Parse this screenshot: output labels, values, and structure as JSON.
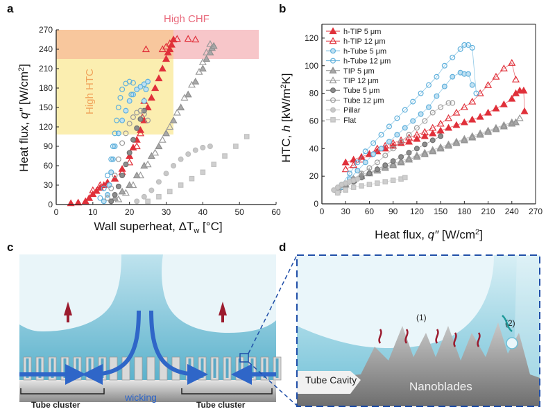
{
  "panels": {
    "a": "a",
    "b": "b",
    "c": "c",
    "d": "d"
  },
  "panel_a": {
    "annotations": {
      "high_chf": "High CHF",
      "high_htc": "High HTC"
    },
    "colors": {
      "chf_band": "#f7c6c9",
      "htc_band": "#fbeeb0",
      "overlap": "#f8c79d"
    }
  },
  "panel_c": {
    "wicking": "wicking",
    "tube_cluster_left": "Tube cluster",
    "tube_cluster_right": "Tube cluster"
  },
  "panel_d": {
    "label_1": "(1)",
    "label_2": "(2)",
    "tube_cavity": "Tube Cavity",
    "nanoblades": "Nanoblades"
  },
  "chart_data": [
    {
      "panel": "a",
      "type": "scatter",
      "xlabel": "Wall superheat, ΔT",
      "xlabel_sub": "w",
      "xlabel_unit": " [°C]",
      "ylabel": "Heat flux, ",
      "ylabel_var": "q″",
      "ylabel_unit": " [W/cm",
      "ylabel_sup": "2",
      "ylabel_end": "]",
      "xlim": [
        0,
        60
      ],
      "ylim": [
        0,
        270
      ],
      "xticks": [
        0,
        10,
        20,
        30,
        40,
        50,
        60
      ],
      "yticks": [
        0,
        30,
        60,
        90,
        120,
        150,
        180,
        210,
        240,
        270
      ],
      "series": [
        {
          "name": "h-TIP 5 μm",
          "marker": "tri",
          "fill": "#e0303a",
          "stroke": "#e0303a",
          "x": [
            4,
            6,
            8,
            9,
            10,
            11,
            12,
            13,
            14,
            16,
            18,
            20,
            21,
            22,
            23,
            24,
            25,
            26,
            27,
            28,
            29,
            30,
            30.5,
            31,
            31.5,
            32
          ],
          "y": [
            2,
            3,
            5,
            10,
            16,
            21,
            26,
            30,
            34,
            40,
            55,
            75,
            88,
            100,
            115,
            130,
            150,
            165,
            180,
            195,
            210,
            225,
            235,
            240,
            247,
            255
          ]
        },
        {
          "name": "h-TIP 12 μm",
          "marker": "tri",
          "fill": "none",
          "stroke": "#e0303a",
          "x": [
            10,
            12,
            14,
            16,
            18,
            20,
            22,
            23,
            23.5,
            24,
            24.5,
            29,
            30,
            31,
            33,
            36,
            38
          ],
          "y": [
            22,
            30,
            34,
            40,
            50,
            65,
            90,
            110,
            135,
            160,
            240,
            240,
            244,
            249,
            256,
            256,
            255
          ]
        },
        {
          "name": "h-Tube 5 μm",
          "marker": "circ",
          "fill": "#bfe0f2",
          "stroke": "#5fb0dc",
          "x": [
            13,
            14,
            14.5,
            15,
            15.5,
            16,
            17,
            18,
            19,
            20,
            21,
            22,
            23,
            24,
            25,
            24.5,
            24
          ],
          "y": [
            5,
            15,
            30,
            50,
            70,
            90,
            110,
            130,
            145,
            160,
            170,
            178,
            182,
            186,
            190,
            178,
            160
          ]
        },
        {
          "name": "h-Tube 12 μm",
          "marker": "circ",
          "fill": "none",
          "stroke": "#5fb0dc",
          "x": [
            12,
            13,
            14,
            15,
            15.5,
            16,
            16.5,
            17,
            17.5,
            18,
            19,
            20,
            21,
            20.5
          ],
          "y": [
            10,
            25,
            45,
            70,
            90,
            110,
            130,
            150,
            165,
            178,
            187,
            190,
            188,
            170
          ]
        },
        {
          "name": "TIP 5 μm",
          "marker": "tri",
          "fill": "#a8a8a8",
          "stroke": "#8e8e8e",
          "x": [
            16,
            18,
            20,
            22,
            24,
            26,
            28,
            30,
            32,
            34,
            36,
            38,
            40,
            41,
            42,
            42.5,
            43
          ],
          "y": [
            10,
            20,
            30,
            45,
            60,
            75,
            90,
            110,
            130,
            150,
            170,
            190,
            210,
            225,
            235,
            242,
            245
          ]
        },
        {
          "name": "TIP 12 μm",
          "marker": "tri",
          "fill": "none",
          "stroke": "#9a9a9a",
          "x": [
            17,
            19,
            21,
            23,
            25,
            27,
            29,
            31,
            33,
            35,
            37,
            39,
            40,
            41,
            42
          ],
          "y": [
            8,
            18,
            30,
            45,
            62,
            80,
            100,
            120,
            142,
            165,
            185,
            205,
            220,
            235,
            248
          ]
        },
        {
          "name": "Tube 5 μm",
          "marker": "circ",
          "fill": "#8c8c8c",
          "stroke": "#707070",
          "x": [
            15,
            16,
            17,
            18,
            19,
            20,
            21,
            22,
            23,
            24
          ],
          "y": [
            5,
            15,
            28,
            45,
            62,
            80,
            100,
            118,
            132,
            145
          ]
        },
        {
          "name": "Tube 12 μm",
          "marker": "circ",
          "fill": "none",
          "stroke": "#9a9a9a",
          "x": [
            14,
            15,
            16,
            17,
            18,
            19,
            20,
            21,
            22,
            23,
            24,
            25
          ],
          "y": [
            10,
            25,
            45,
            70,
            95,
            110,
            125,
            135,
            142,
            145,
            140,
            130
          ]
        },
        {
          "name": "Pillar",
          "marker": "circ",
          "fill": "#c8c8c8",
          "stroke": "#bdbdbd",
          "x": [
            22,
            24,
            26,
            28,
            30,
            32,
            34,
            36,
            38,
            40,
            42
          ],
          "y": [
            5,
            12,
            22,
            35,
            48,
            60,
            70,
            78,
            84,
            88,
            90
          ]
        },
        {
          "name": "Flat",
          "marker": "sq",
          "fill": "#cfcfcf",
          "stroke": "#c0c0c0",
          "x": [
            25,
            28,
            31,
            34,
            37,
            40,
            43,
            46,
            49,
            52
          ],
          "y": [
            5,
            12,
            20,
            30,
            40,
            50,
            62,
            75,
            90,
            105
          ]
        }
      ]
    },
    {
      "panel": "b",
      "type": "line",
      "xlabel": "Heat flux, ",
      "xlabel_var": "q″",
      "xlabel_unit": " [W/cm",
      "xlabel_sup": "2",
      "xlabel_end": "]",
      "ylabel": "HTC, ",
      "ylabel_var": "h",
      "ylabel_unit": " [kW/m",
      "ylabel_sup": "2",
      "ylabel_end": "K]",
      "xlim": [
        0,
        270
      ],
      "ylim": [
        0,
        130
      ],
      "xticks": [
        0,
        30,
        60,
        90,
        120,
        150,
        180,
        210,
        240,
        270
      ],
      "yticks": [
        0,
        20,
        40,
        60,
        80,
        100,
        120
      ],
      "legend_position": "top-left",
      "series": [
        {
          "name": "h-TIP 5 μm",
          "marker": "tri",
          "fill": "#e0303a",
          "stroke": "#e0303a",
          "x": [
            30,
            40,
            50,
            60,
            70,
            80,
            90,
            100,
            110,
            120,
            130,
            140,
            150,
            160,
            170,
            180,
            190,
            200,
            210,
            220,
            230,
            240,
            245,
            250,
            255,
            256
          ],
          "y": [
            30,
            32,
            34,
            36,
            38,
            40,
            42,
            44,
            45,
            47,
            49,
            51,
            53,
            55,
            57,
            59,
            61,
            63,
            66,
            69,
            72,
            76,
            80,
            82,
            82,
            67
          ]
        },
        {
          "name": "h-TIP 12 μm",
          "marker": "tri",
          "fill": "none",
          "stroke": "#e0303a",
          "x": [
            30,
            40,
            50,
            60,
            70,
            80,
            90,
            100,
            110,
            120,
            130,
            140,
            150,
            160,
            170,
            180,
            190,
            200,
            210,
            220,
            230,
            240,
            245
          ],
          "y": [
            25,
            28,
            32,
            36,
            40,
            42,
            44,
            46,
            48,
            50,
            52,
            55,
            58,
            62,
            66,
            70,
            74,
            80,
            86,
            92,
            98,
            102,
            90
          ]
        },
        {
          "name": "h-Tube 5 μm",
          "marker": "circ",
          "fill": "#bfe0f2",
          "stroke": "#5fb0dc",
          "x": [
            25,
            35,
            45,
            55,
            65,
            75,
            85,
            95,
            105,
            115,
            125,
            135,
            145,
            155,
            165,
            175,
            180,
            185,
            190
          ],
          "y": [
            12,
            18,
            24,
            30,
            36,
            40,
            45,
            50,
            55,
            60,
            65,
            70,
            78,
            85,
            92,
            95,
            94,
            94,
            86
          ]
        },
        {
          "name": "h-Tube 12 μm",
          "marker": "circ",
          "fill": "none",
          "stroke": "#5fb0dc",
          "x": [
            25,
            35,
            45,
            55,
            65,
            75,
            85,
            95,
            105,
            115,
            125,
            135,
            145,
            155,
            165,
            175,
            180,
            185,
            190,
            195
          ],
          "y": [
            14,
            22,
            30,
            38,
            44,
            50,
            56,
            62,
            68,
            74,
            80,
            86,
            92,
            100,
            106,
            112,
            115,
            115,
            113,
            80
          ]
        },
        {
          "name": "TIP 5 μm",
          "marker": "tri",
          "fill": "#a8a8a8",
          "stroke": "#8e8e8e",
          "x": [
            20,
            30,
            40,
            50,
            60,
            70,
            80,
            90,
            100,
            110,
            120,
            130,
            140,
            150,
            160,
            170,
            180,
            190,
            200,
            210,
            220,
            230,
            240,
            245
          ],
          "y": [
            10,
            14,
            17,
            20,
            22,
            24,
            26,
            28,
            30,
            32,
            34,
            36,
            38,
            40,
            42,
            44,
            46,
            48,
            50,
            52,
            54,
            56,
            58,
            59
          ]
        },
        {
          "name": "TIP 12 μm",
          "marker": "tri",
          "fill": "none",
          "stroke": "#9a9a9a",
          "x": [
            20,
            30,
            40,
            50,
            60,
            70,
            80,
            90,
            100,
            110,
            120,
            130,
            140,
            150,
            160,
            170,
            180,
            190,
            200,
            210,
            220,
            230,
            240,
            250
          ],
          "y": [
            11,
            14,
            18,
            21,
            23,
            25,
            27,
            29,
            31,
            33,
            35,
            37,
            39,
            41,
            43,
            45,
            47,
            49,
            51,
            53,
            55,
            57,
            59,
            62
          ]
        },
        {
          "name": "Tube 5 μm",
          "marker": "circ",
          "fill": "#8c8c8c",
          "stroke": "#707070",
          "x": [
            20,
            30,
            40,
            50,
            60,
            70,
            80,
            90,
            100,
            110,
            120,
            130,
            140,
            150
          ],
          "y": [
            8,
            12,
            16,
            19,
            22,
            25,
            28,
            31,
            34,
            37,
            40,
            43,
            46,
            49
          ]
        },
        {
          "name": "Tube 12 μm",
          "marker": "circ",
          "fill": "none",
          "stroke": "#9a9a9a",
          "x": [
            20,
            30,
            40,
            50,
            60,
            70,
            80,
            90,
            100,
            110,
            120,
            130,
            140,
            150,
            160,
            165
          ],
          "y": [
            9,
            14,
            18,
            22,
            26,
            30,
            35,
            40,
            45,
            50,
            55,
            60,
            66,
            70,
            73,
            73
          ]
        },
        {
          "name": "Pillar",
          "marker": "circ",
          "fill": "#c8c8c8",
          "stroke": "#bdbdbd",
          "x": [
            15,
            20,
            25,
            30,
            35,
            40,
            45
          ],
          "y": [
            10,
            12,
            14,
            15,
            16,
            17,
            18
          ]
        },
        {
          "name": "Flat",
          "marker": "sq",
          "fill": "#cfcfcf",
          "stroke": "#c0c0c0",
          "x": [
            20,
            30,
            40,
            50,
            60,
            70,
            80,
            90,
            100,
            105
          ],
          "y": [
            8,
            10,
            12,
            13,
            14,
            15,
            16,
            17,
            18,
            19
          ]
        }
      ]
    }
  ]
}
